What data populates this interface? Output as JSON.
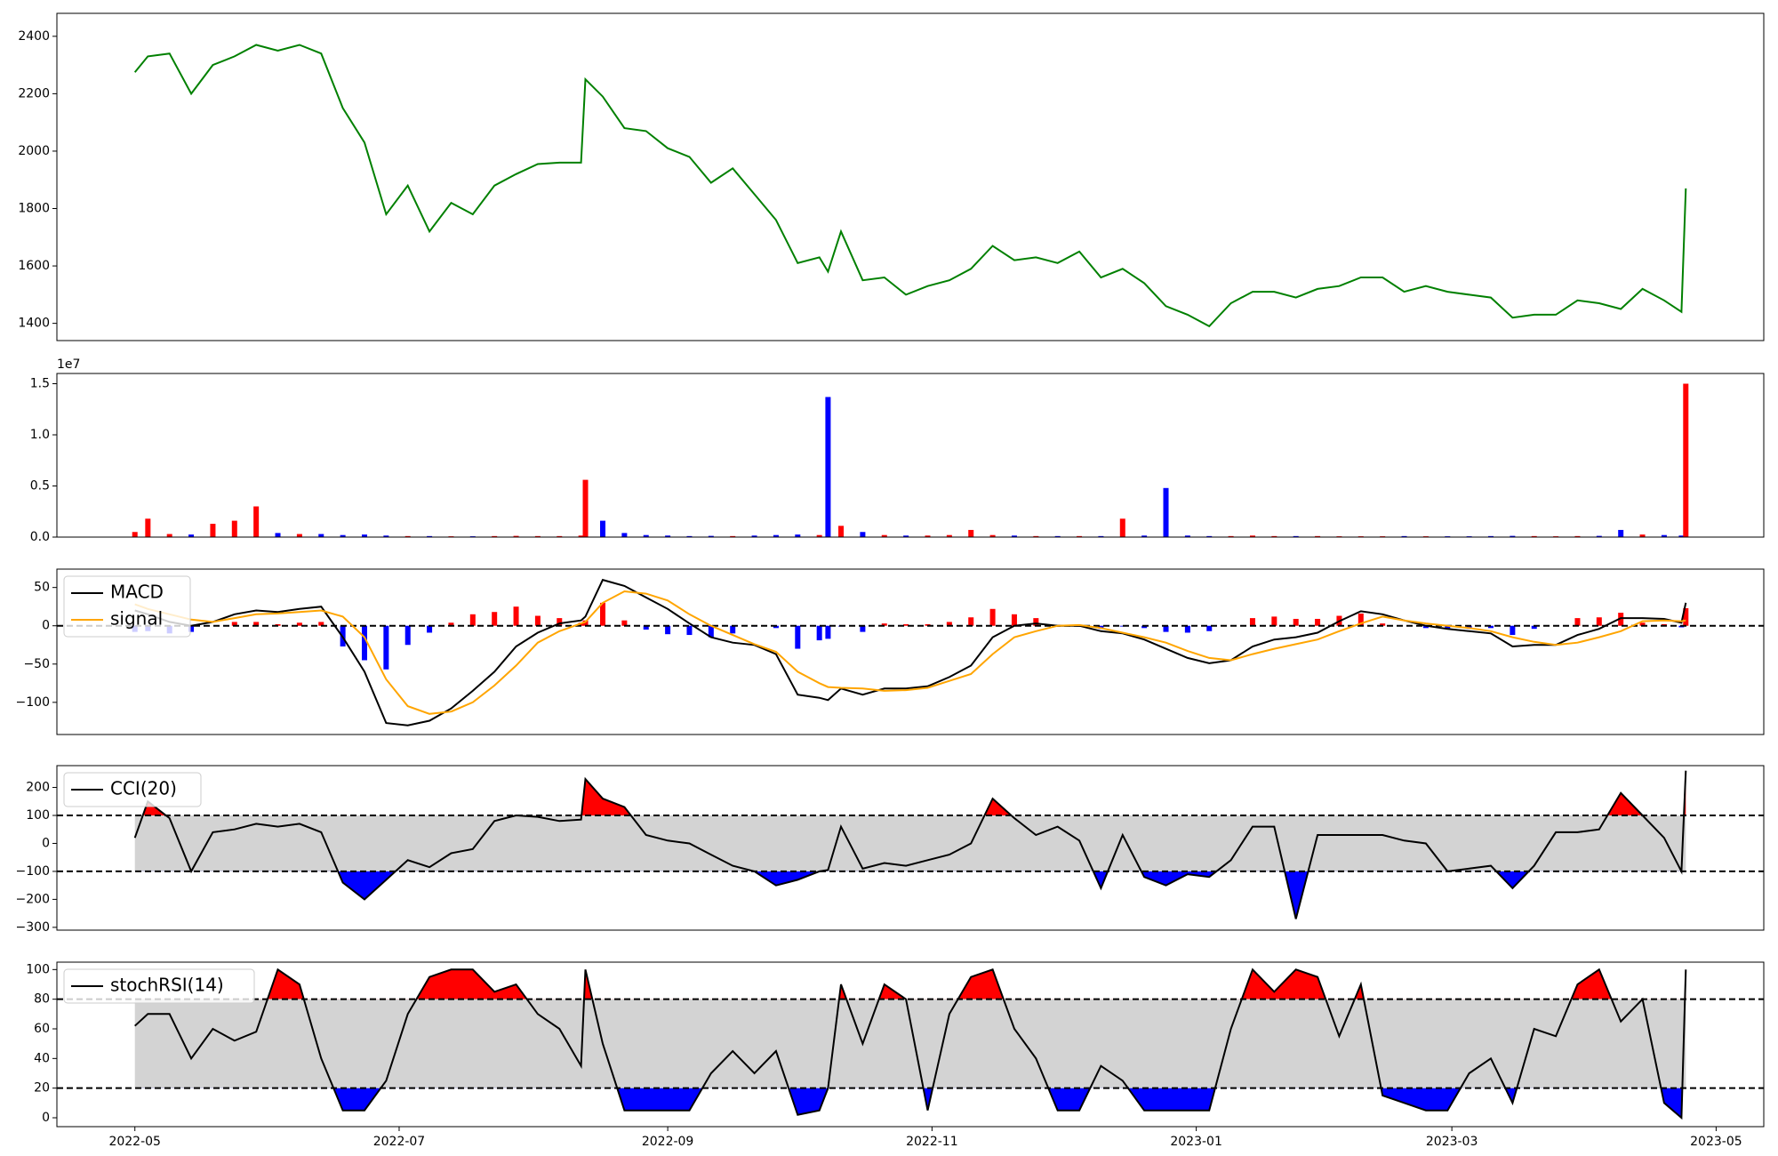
{
  "chart_data": [
    {
      "type": "line",
      "color": "green",
      "xlim": [
        "2022-04-13",
        "2023-05-12"
      ],
      "ylim": [
        1340,
        2480
      ],
      "yticks": [
        1400,
        1600,
        1800,
        2000,
        2200,
        2400
      ],
      "x": [
        "2022-05-01",
        "2022-05-04",
        "2022-05-09",
        "2022-05-14",
        "2022-05-19",
        "2022-05-24",
        "2022-05-29",
        "2022-06-03",
        "2022-06-08",
        "2022-06-13",
        "2022-06-18",
        "2022-06-23",
        "2022-06-28",
        "2022-07-03",
        "2022-07-08",
        "2022-07-13",
        "2022-07-18",
        "2022-07-23",
        "2022-07-28",
        "2022-08-02",
        "2022-08-07",
        "2022-08-12",
        "2022-08-13",
        "2022-08-17",
        "2022-08-22",
        "2022-08-27",
        "2022-09-01",
        "2022-09-06",
        "2022-09-11",
        "2022-09-16",
        "2022-09-21",
        "2022-09-26",
        "2022-10-01",
        "2022-10-06",
        "2022-10-08",
        "2022-10-11",
        "2022-10-16",
        "2022-10-21",
        "2022-10-26",
        "2022-10-31",
        "2022-11-05",
        "2022-11-10",
        "2022-11-15",
        "2022-11-20",
        "2022-11-25",
        "2022-11-30",
        "2022-12-05",
        "2022-12-10",
        "2022-12-15",
        "2022-12-20",
        "2022-12-25",
        "2022-12-30",
        "2023-01-04",
        "2023-01-09",
        "2023-01-14",
        "2023-01-19",
        "2023-01-24",
        "2023-01-29",
        "2023-02-03",
        "2023-02-08",
        "2023-02-13",
        "2023-02-18",
        "2023-02-23",
        "2023-02-28",
        "2023-03-05",
        "2023-03-10",
        "2023-03-15",
        "2023-03-20",
        "2023-03-25",
        "2023-03-30",
        "2023-04-04",
        "2023-04-09",
        "2023-04-14",
        "2023-04-19",
        "2023-04-23",
        "2023-04-24"
      ],
      "values": [
        2275,
        2330,
        2340,
        2200,
        2300,
        2330,
        2370,
        2350,
        2370,
        2340,
        2150,
        2030,
        1780,
        1880,
        1720,
        1820,
        1780,
        1880,
        1920,
        1955,
        1960,
        1960,
        2250,
        2190,
        2080,
        2070,
        2010,
        1980,
        1890,
        1940,
        1850,
        1760,
        1610,
        1630,
        1580,
        1720,
        1550,
        1560,
        1500,
        1530,
        1550,
        1590,
        1670,
        1620,
        1630,
        1610,
        1650,
        1560,
        1590,
        1540,
        1460,
        1430,
        1390,
        1470,
        1510,
        1510,
        1490,
        1520,
        1530,
        1560,
        1560,
        1510,
        1530,
        1510,
        1500,
        1490,
        1420,
        1430,
        1430,
        1480,
        1470,
        1450,
        1520,
        1480,
        1440,
        1870
      ]
    },
    {
      "type": "bar",
      "up_color": "red",
      "down_color": "blue",
      "offset_label": "1e7",
      "xlim": [
        "2022-04-13",
        "2023-05-12"
      ],
      "ylim": [
        0,
        16000000
      ],
      "yticks": [
        {
          "value": 0,
          "label": "0.0"
        },
        {
          "value": 5000000,
          "label": "0.5"
        },
        {
          "value": 10000000,
          "label": "1.0"
        },
        {
          "value": 15000000,
          "label": "1.5"
        }
      ],
      "x": [
        "2022-05-01",
        "2022-05-04",
        "2022-05-09",
        "2022-05-14",
        "2022-05-19",
        "2022-05-24",
        "2022-05-29",
        "2022-06-03",
        "2022-06-08",
        "2022-06-13",
        "2022-06-18",
        "2022-06-23",
        "2022-06-28",
        "2022-07-03",
        "2022-07-08",
        "2022-07-13",
        "2022-07-18",
        "2022-07-23",
        "2022-07-28",
        "2022-08-02",
        "2022-08-07",
        "2022-08-12",
        "2022-08-13",
        "2022-08-17",
        "2022-08-22",
        "2022-08-27",
        "2022-09-01",
        "2022-09-06",
        "2022-09-11",
        "2022-09-16",
        "2022-09-21",
        "2022-09-26",
        "2022-10-01",
        "2022-10-06",
        "2022-10-08",
        "2022-10-11",
        "2022-10-16",
        "2022-10-21",
        "2022-10-26",
        "2022-10-31",
        "2022-11-05",
        "2022-11-10",
        "2022-11-15",
        "2022-11-20",
        "2022-11-25",
        "2022-11-30",
        "2022-12-05",
        "2022-12-10",
        "2022-12-15",
        "2022-12-20",
        "2022-12-25",
        "2022-12-30",
        "2023-01-04",
        "2023-01-09",
        "2023-01-14",
        "2023-01-19",
        "2023-01-24",
        "2023-01-29",
        "2023-02-03",
        "2023-02-08",
        "2023-02-13",
        "2023-02-18",
        "2023-02-23",
        "2023-02-28",
        "2023-03-05",
        "2023-03-10",
        "2023-03-15",
        "2023-03-20",
        "2023-03-25",
        "2023-03-30",
        "2023-04-04",
        "2023-04-09",
        "2023-04-14",
        "2023-04-19",
        "2023-04-23",
        "2023-04-24"
      ],
      "values": [
        500000,
        1800000,
        300000,
        250000,
        1300000,
        1600000,
        3000000,
        400000,
        300000,
        300000,
        200000,
        250000,
        150000,
        100000,
        100000,
        80000,
        80000,
        100000,
        120000,
        100000,
        100000,
        150000,
        5600000,
        1600000,
        400000,
        200000,
        150000,
        100000,
        120000,
        100000,
        150000,
        200000,
        250000,
        200000,
        13700000,
        1100000,
        500000,
        200000,
        150000,
        150000,
        200000,
        700000,
        200000,
        150000,
        100000,
        100000,
        100000,
        100000,
        1800000,
        150000,
        4800000,
        150000,
        100000,
        100000,
        150000,
        100000,
        100000,
        100000,
        80000,
        80000,
        80000,
        100000,
        80000,
        80000,
        80000,
        100000,
        120000,
        100000,
        80000,
        100000,
        120000,
        700000,
        250000,
        200000,
        150000,
        15000000
      ]
    },
    {
      "type": "macd",
      "xlim": [
        "2022-04-13",
        "2023-05-12"
      ],
      "ylim": [
        -142,
        74
      ],
      "zero_line": 0,
      "yticks": [
        {
          "value": -100,
          "label": "−100"
        },
        {
          "value": -50,
          "label": "−50"
        },
        0,
        50
      ],
      "x": [
        "2022-05-01",
        "2022-05-04",
        "2022-05-09",
        "2022-05-14",
        "2022-05-19",
        "2022-05-24",
        "2022-05-29",
        "2022-06-03",
        "2022-06-08",
        "2022-06-13",
        "2022-06-18",
        "2022-06-23",
        "2022-06-28",
        "2022-07-03",
        "2022-07-08",
        "2022-07-13",
        "2022-07-18",
        "2022-07-23",
        "2022-07-28",
        "2022-08-02",
        "2022-08-07",
        "2022-08-12",
        "2022-08-13",
        "2022-08-17",
        "2022-08-22",
        "2022-08-27",
        "2022-09-01",
        "2022-09-06",
        "2022-09-11",
        "2022-09-16",
        "2022-09-21",
        "2022-09-26",
        "2022-10-01",
        "2022-10-06",
        "2022-10-08",
        "2022-10-11",
        "2022-10-16",
        "2022-10-21",
        "2022-10-26",
        "2022-10-31",
        "2022-11-05",
        "2022-11-10",
        "2022-11-15",
        "2022-11-20",
        "2022-11-25",
        "2022-11-30",
        "2022-12-05",
        "2022-12-10",
        "2022-12-15",
        "2022-12-20",
        "2022-12-25",
        "2022-12-30",
        "2023-01-04",
        "2023-01-09",
        "2023-01-14",
        "2023-01-19",
        "2023-01-24",
        "2023-01-29",
        "2023-02-03",
        "2023-02-08",
        "2023-02-13",
        "2023-02-18",
        "2023-02-23",
        "2023-02-28",
        "2023-03-05",
        "2023-03-10",
        "2023-03-15",
        "2023-03-20",
        "2023-03-25",
        "2023-03-30",
        "2023-04-04",
        "2023-04-09",
        "2023-04-14",
        "2023-04-19",
        "2023-04-23",
        "2023-04-24"
      ],
      "series": [
        {
          "name": "MACD",
          "color": "black",
          "values": [
            20,
            15,
            5,
            0,
            5,
            15,
            20,
            18,
            22,
            25,
            -15,
            -60,
            -127,
            -130,
            -124,
            -108,
            -85,
            -60,
            -27,
            -9,
            3,
            7,
            12,
            60,
            52,
            37,
            22,
            3,
            -15,
            -22,
            -25,
            -37,
            -90,
            -94,
            -97,
            -82,
            -90,
            -82,
            -82,
            -79,
            -67,
            -52,
            -15,
            0,
            3,
            0,
            0,
            -7,
            -10,
            -18,
            -30,
            -42,
            -49,
            -45,
            -27,
            -18,
            -15,
            -9,
            6,
            19,
            15,
            7,
            0,
            -4,
            -7,
            -10,
            -27,
            -25,
            -25,
            -12,
            -4,
            10,
            10,
            9,
            4,
            30
          ]
        },
        {
          "name": "signal",
          "color": "orange",
          "values": [
            28,
            22,
            15,
            8,
            5,
            10,
            15,
            16,
            18,
            20,
            12,
            -15,
            -70,
            -105,
            -115,
            -112,
            -100,
            -78,
            -52,
            -22,
            -7,
            3,
            5,
            30,
            45,
            42,
            33,
            15,
            0,
            -12,
            -24,
            -34,
            -60,
            -75,
            -80,
            -81,
            -82,
            -85,
            -84,
            -81,
            -72,
            -63,
            -37,
            -15,
            -7,
            0,
            1,
            -3,
            -9,
            -15,
            -22,
            -33,
            -42,
            -45,
            -37,
            -30,
            -24,
            -18,
            -7,
            3,
            12,
            7,
            3,
            0,
            -3,
            -7,
            -15,
            -21,
            -25,
            -22,
            -15,
            -7,
            6,
            7,
            6,
            7
          ]
        }
      ],
      "histogram": {
        "up_color": "red",
        "down_color": "blue",
        "values": [
          -8,
          -7,
          -10,
          -8,
          0,
          5,
          5,
          2,
          4,
          5,
          -27,
          -45,
          -57,
          -25,
          -9,
          4,
          15,
          18,
          25,
          13,
          10,
          4,
          7,
          30,
          7,
          -5,
          -11,
          -12,
          -15,
          -10,
          -1,
          -3,
          -30,
          -19,
          -17,
          -1,
          -8,
          3,
          2,
          2,
          5,
          11,
          22,
          15,
          10,
          0,
          -1,
          -4,
          -1,
          -3,
          -8,
          -9,
          -7,
          0,
          10,
          12,
          9,
          9,
          13,
          16,
          3,
          0,
          -3,
          -4,
          -4,
          -3,
          -12,
          -4,
          0,
          10,
          11,
          17,
          4,
          2,
          -2,
          23
        ]
      }
    },
    {
      "type": "band",
      "xlim": [
        "2022-04-13",
        "2023-05-12"
      ],
      "ylim": [
        -310,
        278
      ],
      "bands": [
        -100,
        100
      ],
      "band_color": "lightgray",
      "above_color": "red",
      "below_color": "blue",
      "yticks": [
        {
          "value": -300,
          "label": "−300"
        },
        {
          "value": -200,
          "label": "−200"
        },
        {
          "value": -100,
          "label": "−100"
        },
        0,
        100,
        200
      ],
      "x": [
        "2022-05-01",
        "2022-05-04",
        "2022-05-09",
        "2022-05-14",
        "2022-05-19",
        "2022-05-24",
        "2022-05-29",
        "2022-06-03",
        "2022-06-08",
        "2022-06-13",
        "2022-06-18",
        "2022-06-23",
        "2022-06-28",
        "2022-07-03",
        "2022-07-08",
        "2022-07-13",
        "2022-07-18",
        "2022-07-23",
        "2022-07-28",
        "2022-08-02",
        "2022-08-07",
        "2022-08-12",
        "2022-08-13",
        "2022-08-17",
        "2022-08-22",
        "2022-08-27",
        "2022-09-01",
        "2022-09-06",
        "2022-09-11",
        "2022-09-16",
        "2022-09-21",
        "2022-09-26",
        "2022-10-01",
        "2022-10-06",
        "2022-10-08",
        "2022-10-11",
        "2022-10-16",
        "2022-10-21",
        "2022-10-26",
        "2022-10-31",
        "2022-11-05",
        "2022-11-10",
        "2022-11-15",
        "2022-11-20",
        "2022-11-25",
        "2022-11-30",
        "2022-12-05",
        "2022-12-10",
        "2022-12-15",
        "2022-12-20",
        "2022-12-25",
        "2022-12-30",
        "2023-01-04",
        "2023-01-09",
        "2023-01-14",
        "2023-01-19",
        "2023-01-24",
        "2023-01-29",
        "2023-02-03",
        "2023-02-08",
        "2023-02-13",
        "2023-02-18",
        "2023-02-23",
        "2023-02-28",
        "2023-03-05",
        "2023-03-10",
        "2023-03-15",
        "2023-03-20",
        "2023-03-25",
        "2023-03-30",
        "2023-04-04",
        "2023-04-09",
        "2023-04-14",
        "2023-04-19",
        "2023-04-23",
        "2023-04-24"
      ],
      "series": [
        {
          "name": "CCI(20)",
          "color": "black",
          "values": [
            20,
            150,
            90,
            -100,
            40,
            50,
            70,
            60,
            70,
            40,
            -140,
            -200,
            -130,
            -60,
            -85,
            -35,
            -20,
            80,
            100,
            95,
            80,
            85,
            230,
            160,
            130,
            30,
            10,
            0,
            -40,
            -80,
            -100,
            -150,
            -130,
            -100,
            -95,
            60,
            -90,
            -70,
            -80,
            -60,
            -40,
            0,
            160,
            90,
            30,
            60,
            10,
            -160,
            30,
            -120,
            -150,
            -110,
            -120,
            -60,
            60,
            60,
            -270,
            30,
            30,
            30,
            30,
            10,
            0,
            -100,
            -90,
            -80,
            -160,
            -80,
            40,
            40,
            50,
            180,
            100,
            20,
            -100,
            260
          ]
        }
      ]
    },
    {
      "type": "band",
      "xlim": [
        "2022-04-13",
        "2023-05-12"
      ],
      "ylim": [
        -6,
        105
      ],
      "bands": [
        20,
        80
      ],
      "band_color": "lightgray",
      "above_color": "red",
      "below_color": "blue",
      "yticks": [
        0,
        20,
        40,
        60,
        80,
        100
      ],
      "xticks": [
        "2022-05",
        "2022-07",
        "2022-09",
        "2022-11",
        "2023-01",
        "2023-03",
        "2023-05"
      ],
      "x": [
        "2022-05-01",
        "2022-05-04",
        "2022-05-09",
        "2022-05-14",
        "2022-05-19",
        "2022-05-24",
        "2022-05-29",
        "2022-06-03",
        "2022-06-08",
        "2022-06-13",
        "2022-06-18",
        "2022-06-23",
        "2022-06-28",
        "2022-07-03",
        "2022-07-08",
        "2022-07-13",
        "2022-07-18",
        "2022-07-23",
        "2022-07-28",
        "2022-08-02",
        "2022-08-07",
        "2022-08-12",
        "2022-08-13",
        "2022-08-17",
        "2022-08-22",
        "2022-08-27",
        "2022-09-01",
        "2022-09-06",
        "2022-09-11",
        "2022-09-16",
        "2022-09-21",
        "2022-09-26",
        "2022-10-01",
        "2022-10-06",
        "2022-10-08",
        "2022-10-11",
        "2022-10-16",
        "2022-10-21",
        "2022-10-26",
        "2022-10-31",
        "2022-11-05",
        "2022-11-10",
        "2022-11-15",
        "2022-11-20",
        "2022-11-25",
        "2022-11-30",
        "2022-12-05",
        "2022-12-10",
        "2022-12-15",
        "2022-12-20",
        "2022-12-25",
        "2022-12-30",
        "2023-01-04",
        "2023-01-09",
        "2023-01-14",
        "2023-01-19",
        "2023-01-24",
        "2023-01-29",
        "2023-02-03",
        "2023-02-08",
        "2023-02-13",
        "2023-02-18",
        "2023-02-23",
        "2023-02-28",
        "2023-03-05",
        "2023-03-10",
        "2023-03-15",
        "2023-03-20",
        "2023-03-25",
        "2023-03-30",
        "2023-04-04",
        "2023-04-09",
        "2023-04-14",
        "2023-04-19",
        "2023-04-23",
        "2023-04-24"
      ],
      "series": [
        {
          "name": "stochRSI(14)",
          "color": "black",
          "values": [
            62,
            70,
            70,
            40,
            60,
            52,
            58,
            100,
            90,
            40,
            5,
            5,
            25,
            70,
            95,
            100,
            100,
            85,
            90,
            70,
            60,
            35,
            100,
            50,
            5,
            5,
            5,
            5,
            30,
            45,
            30,
            45,
            2,
            5,
            20,
            90,
            50,
            90,
            80,
            5,
            70,
            95,
            100,
            60,
            40,
            5,
            5,
            35,
            25,
            5,
            5,
            5,
            5,
            60,
            100,
            85,
            100,
            95,
            55,
            90,
            15,
            10,
            5,
            5,
            30,
            40,
            10,
            60,
            55,
            90,
            100,
            65,
            80,
            10,
            0,
            100
          ]
        }
      ]
    }
  ]
}
